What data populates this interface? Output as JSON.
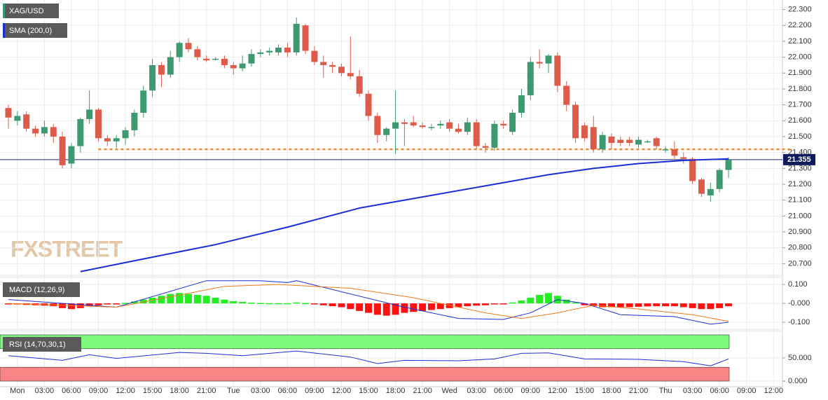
{
  "chart_data": {
    "type": "candlestick",
    "title": "XAG/USD",
    "sma_label": "SMA (200,0)",
    "macd_label": "MACD (12,26,9)",
    "rsi_label": "RSI (14,70,30,1)",
    "watermark": "FXSTREET",
    "up_color": "#3d9970",
    "down_color": "#dd5b4b",
    "sma_color": "#1a2ed6",
    "level_color": "#f08a24",
    "candles": [
      [
        21.68,
        21.7,
        21.55,
        21.62
      ],
      [
        21.6,
        21.66,
        21.57,
        21.63
      ],
      [
        21.64,
        21.66,
        21.53,
        21.55
      ],
      [
        21.55,
        21.57,
        21.5,
        21.52
      ],
      [
        21.52,
        21.6,
        21.5,
        21.56
      ],
      [
        21.56,
        21.58,
        21.46,
        21.5
      ],
      [
        21.5,
        21.53,
        21.3,
        21.32
      ],
      [
        21.33,
        21.46,
        21.3,
        21.44
      ],
      [
        21.44,
        21.62,
        21.4,
        21.61
      ],
      [
        21.61,
        21.79,
        21.58,
        21.67
      ],
      [
        21.67,
        21.68,
        21.47,
        21.49
      ],
      [
        21.49,
        21.51,
        21.44,
        21.47
      ],
      [
        21.47,
        21.51,
        21.43,
        21.49
      ],
      [
        21.49,
        21.56,
        21.45,
        21.54
      ],
      [
        21.54,
        21.67,
        21.5,
        21.65
      ],
      [
        21.65,
        21.82,
        21.62,
        21.79
      ],
      [
        21.79,
        21.99,
        21.75,
        21.95
      ],
      [
        21.95,
        21.97,
        21.81,
        21.89
      ],
      [
        21.89,
        22.04,
        21.87,
        22.0
      ],
      [
        22.0,
        22.1,
        21.97,
        22.09
      ],
      [
        22.09,
        22.12,
        22.03,
        22.05
      ],
      [
        22.05,
        22.07,
        21.98,
        22.0
      ],
      [
        21.99,
        22.01,
        21.97,
        21.98
      ],
      [
        21.99,
        22.0,
        21.98,
        21.99
      ],
      [
        21.99,
        22.01,
        21.93,
        21.95
      ],
      [
        21.95,
        21.97,
        21.89,
        21.93
      ],
      [
        21.93,
        22.01,
        21.91,
        21.96
      ],
      [
        21.96,
        22.05,
        21.94,
        22.02
      ],
      [
        22.02,
        22.05,
        22.0,
        22.03
      ],
      [
        22.03,
        22.06,
        22.01,
        22.04
      ],
      [
        22.03,
        22.08,
        22.01,
        22.06
      ],
      [
        22.06,
        22.09,
        22.0,
        22.03
      ],
      [
        22.03,
        22.25,
        22.01,
        22.21
      ],
      [
        22.2,
        22.21,
        22.02,
        22.04
      ],
      [
        22.04,
        22.07,
        21.95,
        21.97
      ],
      [
        21.97,
        22.01,
        21.87,
        21.95
      ],
      [
        21.95,
        21.97,
        21.9,
        21.94
      ],
      [
        21.94,
        21.96,
        21.88,
        21.9
      ],
      [
        21.9,
        22.13,
        21.86,
        21.88
      ],
      [
        21.88,
        21.92,
        21.75,
        21.77
      ],
      [
        21.77,
        21.79,
        21.6,
        21.63
      ],
      [
        21.63,
        21.65,
        21.46,
        21.51
      ],
      [
        21.51,
        21.56,
        21.47,
        21.55
      ],
      [
        21.55,
        21.79,
        21.39,
        21.59
      ],
      [
        21.59,
        21.61,
        21.44,
        21.58
      ],
      [
        21.59,
        21.63,
        21.56,
        21.57
      ],
      [
        21.57,
        21.59,
        21.55,
        21.56
      ],
      [
        21.56,
        21.58,
        21.54,
        21.56
      ],
      [
        21.57,
        21.6,
        21.55,
        21.58
      ],
      [
        21.59,
        21.61,
        21.53,
        21.55
      ],
      [
        21.55,
        21.58,
        21.52,
        21.53
      ],
      [
        21.53,
        21.62,
        21.51,
        21.59
      ],
      [
        21.59,
        21.61,
        21.42,
        21.44
      ],
      [
        21.44,
        21.46,
        21.4,
        21.43
      ],
      [
        21.43,
        21.6,
        21.41,
        21.58
      ],
      [
        21.58,
        21.6,
        21.55,
        21.57
      ],
      [
        21.53,
        21.67,
        21.51,
        21.65
      ],
      [
        21.65,
        21.8,
        21.62,
        21.76
      ],
      [
        21.76,
        22.0,
        21.73,
        21.97
      ],
      [
        21.97,
        22.05,
        21.93,
        21.96
      ],
      [
        21.96,
        22.02,
        21.9,
        22.01
      ],
      [
        22.01,
        22.03,
        21.78,
        21.82
      ],
      [
        21.82,
        21.85,
        21.66,
        21.7
      ],
      [
        21.7,
        21.72,
        21.46,
        21.49
      ],
      [
        21.57,
        21.59,
        21.47,
        21.49
      ],
      [
        21.56,
        21.63,
        21.4,
        21.42
      ],
      [
        21.42,
        21.53,
        21.4,
        21.51
      ],
      [
        21.5,
        21.52,
        21.42,
        21.46
      ],
      [
        21.48,
        21.5,
        21.44,
        21.46
      ],
      [
        21.48,
        21.5,
        21.44,
        21.46
      ],
      [
        21.45,
        21.5,
        21.43,
        21.48
      ],
      [
        21.47,
        21.48,
        21.46,
        21.47
      ],
      [
        21.49,
        21.5,
        21.42,
        21.44
      ],
      [
        21.42,
        21.44,
        21.4,
        21.42
      ],
      [
        21.42,
        21.47,
        21.36,
        21.38
      ],
      [
        21.37,
        21.4,
        21.33,
        21.36
      ],
      [
        21.36,
        21.37,
        21.2,
        21.22
      ],
      [
        21.23,
        21.24,
        21.12,
        21.14
      ],
      [
        21.13,
        21.21,
        21.09,
        21.17
      ],
      [
        21.17,
        21.3,
        21.15,
        21.29
      ],
      [
        21.29,
        21.37,
        21.24,
        21.355
      ]
    ],
    "sma": {
      "x": [
        8,
        15,
        23,
        31,
        39,
        47,
        54,
        60,
        65,
        70,
        75,
        80
      ],
      "values": [
        20.65,
        20.73,
        20.82,
        20.93,
        21.05,
        21.13,
        21.2,
        21.26,
        21.3,
        21.33,
        21.35,
        21.36
      ]
    },
    "level": {
      "x": [
        10,
        87
      ],
      "value": 21.42
    },
    "last_price": 21.355,
    "ylim": [
      20.64,
      22.36
    ],
    "yticks": [
      {
        "value": 22.3,
        "label": "22.300"
      },
      {
        "value": 22.2,
        "label": "22.200"
      },
      {
        "value": 22.1,
        "label": "22.100"
      },
      {
        "value": 22.0,
        "label": "22.000"
      },
      {
        "value": 21.9,
        "label": "21.900"
      },
      {
        "value": 21.8,
        "label": "21.800"
      },
      {
        "value": 21.7,
        "label": "21.700"
      },
      {
        "value": 21.6,
        "label": "21.600"
      },
      {
        "value": 21.5,
        "label": "21.500"
      },
      {
        "value": 21.4,
        "label": "21.400"
      },
      {
        "value": 21.3,
        "label": "21.300"
      },
      {
        "value": 21.2,
        "label": "21.200"
      },
      {
        "value": 21.1,
        "label": "21.100"
      },
      {
        "value": 21.0,
        "label": "21.000"
      },
      {
        "value": 20.9,
        "label": "20.900"
      },
      {
        "value": 20.8,
        "label": "20.800"
      },
      {
        "value": 20.7,
        "label": "20.700"
      }
    ],
    "time_labels": [
      "Mon",
      "03:00",
      "06:00",
      "09:00",
      "12:00",
      "15:00",
      "18:00",
      "21:00",
      "Tue",
      "03:00",
      "06:00",
      "09:00",
      "12:00",
      "15:00",
      "18:00",
      "21:00",
      "Wed",
      "03:00",
      "06:00",
      "09:00",
      "12:00",
      "15:00",
      "18:00",
      "21:00",
      "Thu",
      "03:00",
      "06:00",
      "09:00",
      "12:00"
    ],
    "macd": {
      "ylim": [
        -0.122,
        0.13
      ],
      "yticks": [
        {
          "value": 0.1,
          "label": "0.100"
        },
        {
          "value": 0,
          "label": "-0.000"
        },
        {
          "value": -0.1,
          "label": "-0.100"
        }
      ],
      "histogram": [
        -0.005,
        -0.005,
        -0.008,
        -0.01,
        -0.012,
        -0.015,
        -0.025,
        -0.03,
        -0.025,
        -0.015,
        -0.01,
        -0.005,
        -0.003,
        0.003,
        0.01,
        0.02,
        0.03,
        0.04,
        0.05,
        0.055,
        0.05,
        0.045,
        0.04,
        0.03,
        0.02,
        0.012,
        0.008,
        0.004,
        0.002,
        0.001,
        0.001,
        0.001,
        0.005,
        0.002,
        -0.005,
        -0.01,
        -0.015,
        -0.02,
        -0.03,
        -0.04,
        -0.05,
        -0.06,
        -0.065,
        -0.06,
        -0.05,
        -0.045,
        -0.04,
        -0.035,
        -0.03,
        -0.025,
        -0.02,
        -0.015,
        -0.012,
        -0.01,
        -0.005,
        -0.002,
        0.005,
        0.015,
        0.03,
        0.045,
        0.055,
        0.04,
        0.02,
        0.005,
        -0.01,
        -0.015,
        -0.02,
        -0.02,
        -0.02,
        -0.02,
        -0.018,
        -0.016,
        -0.015,
        -0.015,
        -0.015,
        -0.02,
        -0.025,
        -0.03,
        -0.03,
        -0.025,
        -0.015
      ],
      "pos_color": "#22ee22",
      "neg_color": "#ff1111",
      "line_color": "#1a2ed6",
      "signal_color": "#f07c1a",
      "line": {
        "x": [
          0,
          12,
          22,
          28,
          31,
          32,
          44,
          50,
          55,
          58,
          61,
          64,
          68,
          74,
          78,
          80
        ],
        "values": [
          0.02,
          -0.02,
          0.12,
          0.12,
          0.11,
          0.12,
          -0.02,
          -0.08,
          -0.085,
          -0.05,
          0.02,
          0,
          -0.06,
          -0.07,
          -0.11,
          -0.1
        ]
      },
      "signal": {
        "x": [
          0,
          12,
          24,
          30,
          38,
          45,
          53,
          57,
          61,
          65,
          70,
          76,
          80
        ],
        "values": [
          0,
          -0.02,
          0.09,
          0.1,
          0.08,
          0.03,
          -0.05,
          -0.08,
          -0.05,
          -0.01,
          -0.03,
          -0.06,
          -0.095
        ]
      }
    },
    "rsi": {
      "ylim": [
        -6,
        101.5
      ],
      "yticks": [
        {
          "value": 50,
          "label": "50.000"
        },
        {
          "value": 0,
          "label": "0.000"
        }
      ],
      "overbought": 70,
      "oversold": 30,
      "line_color": "#1a2ed6",
      "ob_color": "#7dfa7d",
      "os_color": "#f98484",
      "line": {
        "x": [
          0,
          6,
          9,
          12,
          19,
          22,
          26,
          32,
          38,
          41,
          44,
          50,
          54,
          57,
          60,
          64,
          70,
          75,
          78,
          80
        ],
        "values": [
          55,
          45,
          57,
          49,
          62,
          60,
          55,
          65,
          52,
          38,
          45,
          44,
          48,
          60,
          61,
          48,
          47,
          42,
          33,
          48
        ]
      }
    }
  }
}
